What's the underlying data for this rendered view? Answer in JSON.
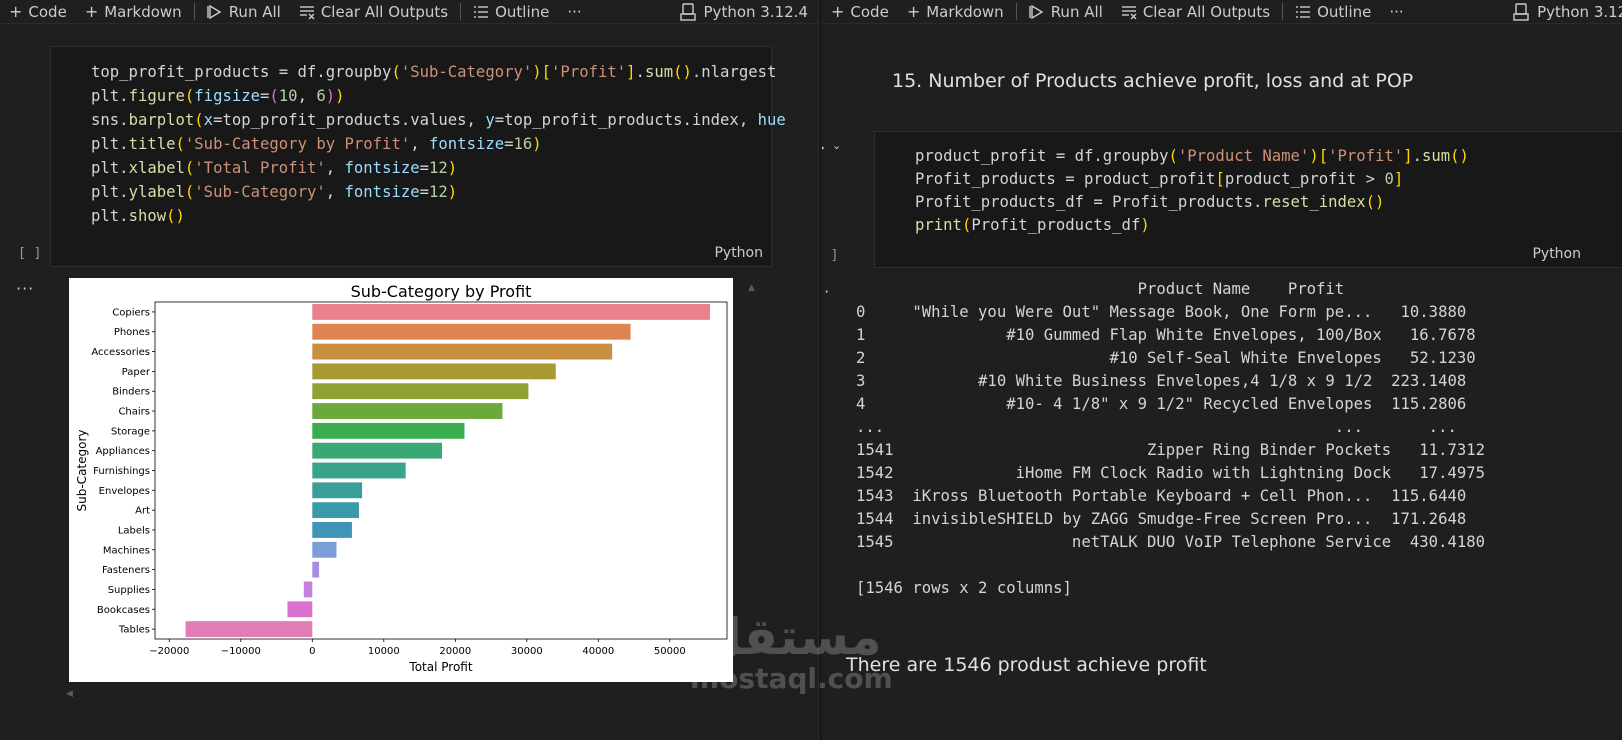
{
  "left_toolbar": {
    "code": "Code",
    "markdown": "Markdown",
    "run_all": "Run All",
    "clear_outputs": "Clear All Outputs",
    "outline": "Outline",
    "more": "···",
    "kernel": "Python 3.12.4"
  },
  "right_toolbar": {
    "code": "Code",
    "markdown": "Markdown",
    "run_all": "Run All",
    "clear_outputs": "Clear All Outputs",
    "outline": "Outline",
    "more": "···",
    "kernel": "Python 3.12."
  },
  "left_cell": {
    "exec_count": "[ ]",
    "language": "Python",
    "output_dots": "···"
  },
  "right_markdown": "15. Number of Products achieve profit, loss and at POP",
  "right_cell": {
    "exec_count": "[ ]",
    "language": "Python",
    "output_dots": "···"
  },
  "right_output": {
    "header": "                              Product Name    Profit",
    "rows": [
      "0     \"While you Were Out\" Message Book, One Form pe...   10.3880",
      "1               #10 Gummed Flap White Envelopes, 100/Box   16.7678",
      "2                          #10 Self-Seal White Envelopes   52.1230",
      "3            #10 White Business Envelopes,4 1/8 x 9 1/2  223.1408",
      "4               #10- 4 1/8\" x 9 1/2\" Recycled Envelopes  115.2806",
      "...                                                ...       ...",
      "1541                           Zipper Ring Binder Pockets   11.7312",
      "1542             iHome FM Clock Radio with Lightning Dock   17.4975",
      "1543  iKross Bluetooth Portable Keyboard + Cell Phon...  115.6440",
      "1544  invisibleSHIELD by ZAGG Smudge-Free Screen Pro...  171.2648",
      "1545                   netTALK DUO VoIP Telephone Service  430.4180",
      "",
      "[1546 rows x 2 columns]"
    ]
  },
  "right_markdown2": "There are 1546 produst achieve profit",
  "watermark": {
    "arabic": "مستقل",
    "latin": "mostaql.com"
  },
  "chart_data": {
    "type": "bar",
    "orientation": "horizontal",
    "title": "Sub-Category by Profit",
    "xlabel": "Total Profit",
    "ylabel": "Sub-Category",
    "categories": [
      "Copiers",
      "Phones",
      "Accessories",
      "Paper",
      "Binders",
      "Chairs",
      "Storage",
      "Appliances",
      "Furnishings",
      "Envelopes",
      "Art",
      "Labels",
      "Machines",
      "Fasteners",
      "Supplies",
      "Bookcases",
      "Tables"
    ],
    "values": [
      55618,
      44516,
      41937,
      34054,
      30222,
      26590,
      21279,
      18138,
      13059,
      6964,
      6528,
      5546,
      3385,
      950,
      -1189,
      -3473,
      -17725
    ],
    "colors": [
      "#e8808e",
      "#dd8452",
      "#c98f40",
      "#a89a33",
      "#8fa035",
      "#6ca83b",
      "#3aad4f",
      "#3aa872",
      "#38a48c",
      "#3a9e9b",
      "#3b9aa8",
      "#3f95b8",
      "#7c9ed8",
      "#a78fe0",
      "#c47fe0",
      "#db72cf",
      "#e37bb4"
    ],
    "xlim": [
      -22000,
      58000
    ],
    "xticks": [
      -20000,
      -10000,
      0,
      10000,
      20000,
      30000,
      40000,
      50000
    ],
    "xtick_labels": [
      "−20000",
      "−10000",
      "0",
      "10000",
      "20000",
      "30000",
      "40000",
      "50000"
    ]
  }
}
